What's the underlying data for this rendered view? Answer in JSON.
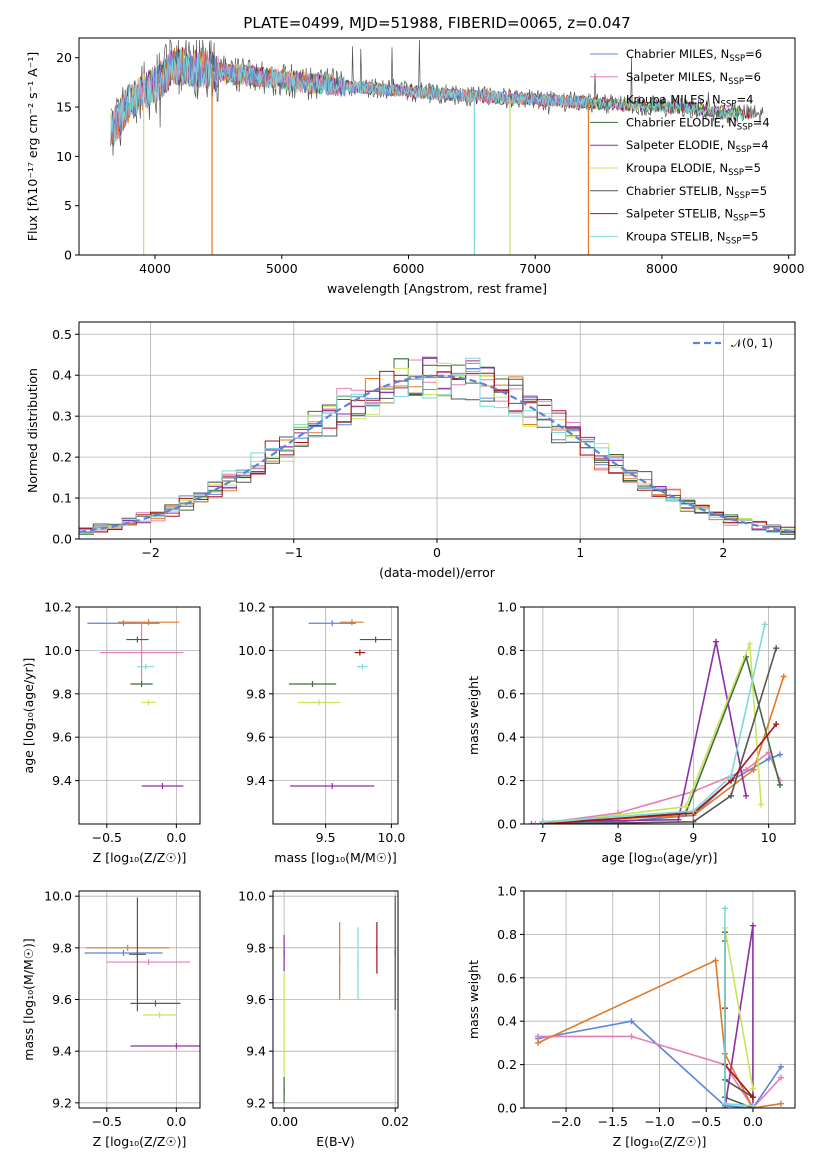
{
  "figure_title": "PLATE=0499, MJD=51988, FIBERID=0065, z=0.047",
  "colors": {
    "Chabrier MILES": "#5b86d8",
    "Salpeter MILES": "#e57fb8",
    "Kroupa MILES": "#e07a2a",
    "Chabrier ELODIE": "#3f6e3f",
    "Salpeter ELODIE": "#8f2ea8",
    "Kroupa ELODIE": "#c9e55a",
    "Chabrier STELIB": "#555555",
    "Salpeter STELIB": "#a81515",
    "Kroupa STELIB": "#7fd8d8"
  },
  "chart_data": [
    {
      "id": "spectrum",
      "type": "line",
      "xlabel": "wavelength [Angstrom, rest frame]",
      "ylabel": "Flux [fλ10⁻¹⁷ erg cm⁻² s⁻¹ A⁻¹]",
      "xlim": [
        3400,
        9050
      ],
      "ylim": [
        0,
        22
      ],
      "xticks": [
        4000,
        5000,
        6000,
        7000,
        8000,
        9000
      ],
      "yticks": [
        0,
        5,
        10,
        15,
        20
      ],
      "grid": false,
      "legend_position": "top-right",
      "legend": [
        {
          "label": "Chabrier MILES, N",
          "sub": "SSP",
          "eq": "=6"
        },
        {
          "label": "Salpeter MILES, N",
          "sub": "SSP",
          "eq": "=6"
        },
        {
          "label": "Kroupa MILES, N",
          "sub": "SSP",
          "eq": "=4"
        },
        {
          "label": "Chabrier ELODIE, N",
          "sub": "SSP",
          "eq": "=4"
        },
        {
          "label": "Salpeter ELODIE, N",
          "sub": "SSP",
          "eq": "=4"
        },
        {
          "label": "Kroupa ELODIE, N",
          "sub": "SSP",
          "eq": "=5"
        },
        {
          "label": "Chabrier STELIB, N",
          "sub": "SSP",
          "eq": "=5"
        },
        {
          "label": "Salpeter STELIB, N",
          "sub": "SSP",
          "eq": "=5"
        },
        {
          "label": "Kroupa STELIB, N",
          "sub": "SSP",
          "eq": "=5"
        }
      ],
      "continuum": {
        "x": [
          3650,
          3800,
          3950,
          4050,
          4150,
          4400,
          4700,
          5000,
          5300,
          5600,
          6000,
          6400,
          6800,
          7200,
          7500,
          7800,
          8200,
          8500,
          8800
        ],
        "y": [
          12.5,
          15.5,
          16.8,
          17.8,
          19.2,
          18.8,
          18.2,
          17.8,
          17.3,
          17.0,
          16.6,
          16.2,
          15.9,
          15.6,
          15.4,
          15.2,
          14.9,
          14.4,
          14.2
        ]
      },
      "dropouts": [
        {
          "series": "Kroupa ELODIE",
          "x": 3910
        },
        {
          "series": "Kroupa MILES",
          "x": 4450
        },
        {
          "series": "Kroupa STELIB",
          "x": 6520
        },
        {
          "series": "Kroupa ELODIE",
          "x": 6800
        },
        {
          "series": "Kroupa MILES",
          "x": 7420
        }
      ]
    },
    {
      "id": "residuals",
      "type": "line",
      "xlabel": "(data-model)/error",
      "ylabel": "Normed distribution",
      "xlim": [
        -2.5,
        2.5
      ],
      "ylim": [
        0,
        0.53
      ],
      "xticks": [
        -2,
        -1,
        0,
        1,
        2
      ],
      "yticks": [
        0.0,
        0.1,
        0.2,
        0.3,
        0.4,
        0.5
      ],
      "grid": true,
      "legend_position": "top-right",
      "reference_curve": {
        "label": "𝒩(0, 1)",
        "mean": 0,
        "sigma": 1
      }
    },
    {
      "id": "age_vs_Z",
      "type": "scatter",
      "xlabel": "Z [log₁₀(Z/Z☉)]",
      "ylabel": "age  [log₁₀(age/yr)]",
      "xlim": [
        -0.7,
        0.17
      ],
      "ylim": [
        9.2,
        10.2
      ],
      "xticks": [
        -0.5,
        0.0
      ],
      "yticks": [
        9.4,
        9.6,
        9.8,
        10.0,
        10.2
      ],
      "grid": true,
      "points": [
        {
          "series": "Chabrier MILES",
          "x": -0.38,
          "y": 10.125,
          "xerr": 0.26,
          "yerr": 0.0
        },
        {
          "series": "Kroupa MILES",
          "x": -0.2,
          "y": 10.13,
          "xerr": 0.22,
          "yerr": 0.0
        },
        {
          "series": "Salpeter MILES",
          "x": -0.25,
          "y": 9.99,
          "xerr": 0.3,
          "yerr": 0.14
        },
        {
          "series": "Chabrier STELIB",
          "x": -0.28,
          "y": 10.05,
          "xerr": 0.08,
          "yerr": 0.0
        },
        {
          "series": "Kroupa STELIB",
          "x": -0.22,
          "y": 9.925,
          "xerr": 0.06,
          "yerr": 0.0
        },
        {
          "series": "Chabrier ELODIE",
          "x": -0.25,
          "y": 9.845,
          "xerr": 0.08,
          "yerr": 0.0
        },
        {
          "series": "Kroupa ELODIE",
          "x": -0.2,
          "y": 9.76,
          "xerr": 0.05,
          "yerr": 0.0
        },
        {
          "series": "Salpeter ELODIE",
          "x": -0.1,
          "y": 9.375,
          "xerr": 0.15,
          "yerr": 0.0
        }
      ]
    },
    {
      "id": "age_vs_mass",
      "type": "scatter",
      "xlabel": "mass [log₁₀(M/M☉)]",
      "ylabel": "",
      "xlim": [
        9.1,
        10.05
      ],
      "ylim": [
        9.2,
        10.2
      ],
      "xticks": [
        9.5,
        10.0
      ],
      "yticks": [
        9.4,
        9.6,
        9.8,
        10.0,
        10.2
      ],
      "grid": true,
      "points": [
        {
          "series": "Chabrier MILES",
          "x": 9.55,
          "y": 10.125,
          "xerr": 0.18,
          "yerr": 0.0
        },
        {
          "series": "Kroupa MILES",
          "x": 9.7,
          "y": 10.13,
          "xerr": 0.09,
          "yerr": 0.0
        },
        {
          "series": "Chabrier STELIB",
          "x": 9.88,
          "y": 10.05,
          "xerr": 0.12,
          "yerr": 0.0
        },
        {
          "series": "Salpeter STELIB",
          "x": 9.76,
          "y": 9.99,
          "xerr": 0.04,
          "yerr": 0.0
        },
        {
          "series": "Kroupa STELIB",
          "x": 9.78,
          "y": 9.925,
          "xerr": 0.04,
          "yerr": 0.0
        },
        {
          "series": "Chabrier ELODIE",
          "x": 9.4,
          "y": 9.845,
          "xerr": 0.18,
          "yerr": 0.0
        },
        {
          "series": "Kroupa ELODIE",
          "x": 9.45,
          "y": 9.76,
          "xerr": 0.16,
          "yerr": 0.0
        },
        {
          "series": "Salpeter ELODIE",
          "x": 9.55,
          "y": 9.375,
          "xerr": 0.32,
          "yerr": 0.0
        }
      ]
    },
    {
      "id": "massweight_vs_age",
      "type": "line",
      "xlabel": "age  [log₁₀(age/yr)]",
      "ylabel": "mass weight",
      "xlim": [
        6.75,
        10.35
      ],
      "ylim": [
        0,
        1.0
      ],
      "xticks": [
        7,
        8,
        9,
        10
      ],
      "yticks": [
        0.0,
        0.2,
        0.4,
        0.6,
        0.8,
        1.0
      ],
      "grid": true,
      "series": [
        {
          "name": "Chabrier MILES",
          "x": [
            6.85,
            8.0,
            9.0,
            9.5,
            10.0,
            10.15
          ],
          "y": [
            0.0,
            0.01,
            0.04,
            0.2,
            0.3,
            0.32
          ]
        },
        {
          "name": "Salpeter MILES",
          "x": [
            6.9,
            8.0,
            9.0,
            9.7,
            10.0,
            10.15
          ],
          "y": [
            0.0,
            0.05,
            0.15,
            0.25,
            0.33,
            0.2
          ]
        },
        {
          "name": "Kroupa MILES",
          "x": [
            7.0,
            9.0,
            9.8,
            10.2
          ],
          "y": [
            0.01,
            0.04,
            0.25,
            0.68
          ]
        },
        {
          "name": "Chabrier ELODIE",
          "x": [
            7.0,
            8.9,
            9.7,
            10.15
          ],
          "y": [
            0.0,
            0.05,
            0.77,
            0.18
          ]
        },
        {
          "name": "Salpeter ELODIE",
          "x": [
            7.0,
            8.8,
            9.3,
            9.7
          ],
          "y": [
            0.01,
            0.02,
            0.84,
            0.13
          ]
        },
        {
          "name": "Kroupa ELODIE",
          "x": [
            7.0,
            8.9,
            9.75,
            9.9
          ],
          "y": [
            0.0,
            0.08,
            0.83,
            0.09
          ]
        },
        {
          "name": "Chabrier STELIB",
          "x": [
            7.0,
            9.0,
            9.5,
            10.1
          ],
          "y": [
            0.0,
            0.01,
            0.13,
            0.81
          ]
        },
        {
          "name": "Salpeter STELIB",
          "x": [
            7.0,
            9.0,
            9.5,
            10.1
          ],
          "y": [
            0.0,
            0.05,
            0.2,
            0.46
          ]
        },
        {
          "name": "Kroupa STELIB",
          "x": [
            7.0,
            9.0,
            9.5,
            9.95
          ],
          "y": [
            0.01,
            0.06,
            0.22,
            0.92
          ]
        }
      ]
    },
    {
      "id": "mass_vs_Z",
      "type": "scatter",
      "xlabel": "Z [log₁₀(Z/Z☉)]",
      "ylabel": "mass [log₁₀(M/M☉)]",
      "xlim": [
        -0.7,
        0.17
      ],
      "ylim": [
        9.18,
        10.02
      ],
      "xticks": [
        -0.5,
        0.0
      ],
      "yticks": [
        9.2,
        9.4,
        9.6,
        9.8,
        10.0
      ],
      "grid": true,
      "points": [
        {
          "series": "Kroupa MILES",
          "x": -0.35,
          "y": 9.8,
          "xerr": 0.3,
          "yerr": 0.0
        },
        {
          "series": "Chabrier MILES",
          "x": -0.38,
          "y": 9.78,
          "xerr": 0.28,
          "yerr": 0.0
        },
        {
          "series": "Salpeter MILES",
          "x": -0.2,
          "y": 9.745,
          "xerr": 0.3,
          "yerr": 0.0
        },
        {
          "series": "Chabrier STELIB",
          "x": -0.28,
          "y": 9.775,
          "xerr": 0.06,
          "yerr": 0.22
        },
        {
          "series": "Chabrier ELODIE",
          "x": -0.15,
          "y": 9.585,
          "xerr": 0.18,
          "yerr": 0.0
        },
        {
          "series": "Kroupa ELODIE",
          "x": -0.12,
          "y": 9.54,
          "xerr": 0.12,
          "yerr": 0.0
        },
        {
          "series": "Salpeter ELODIE",
          "x": 0.0,
          "y": 9.42,
          "xerr": 0.33,
          "yerr": 0.0
        }
      ]
    },
    {
      "id": "mass_vs_EBV",
      "type": "scatter",
      "xlabel": "E(B-V)",
      "ylabel": "",
      "xlim": [
        -0.002,
        0.0205
      ],
      "ylim": [
        9.18,
        10.02
      ],
      "xticks": [
        0.0,
        0.02
      ],
      "yticks": [
        9.2,
        9.4,
        9.6,
        9.8,
        10.0
      ],
      "grid": true,
      "points": [
        {
          "series": "Salpeter ELODIE",
          "x": 0.0,
          "y": 9.78,
          "xerr": 0.0,
          "yerr": 0.07
        },
        {
          "series": "Kroupa ELODIE",
          "x": 0.0,
          "y": 9.5,
          "xerr": 0.0,
          "yerr": 0.2
        },
        {
          "series": "Chabrier ELODIE",
          "x": 0.0,
          "y": 9.25,
          "xerr": 0.0,
          "yerr": 0.05
        },
        {
          "series": "Kroupa MILES",
          "x": 0.01,
          "y": 9.75,
          "xerr": 0.0,
          "yerr": 0.15
        },
        {
          "series": "Kroupa STELIB",
          "x": 0.0133,
          "y": 9.74,
          "xerr": 0.0,
          "yerr": 0.14
        },
        {
          "series": "Salpeter STELIB",
          "x": 0.0167,
          "y": 9.8,
          "xerr": 0.0,
          "yerr": 0.1
        },
        {
          "series": "Chabrier STELIB",
          "x": 0.02,
          "y": 9.78,
          "xerr": 0.0,
          "yerr": 0.22
        }
      ]
    },
    {
      "id": "massweight_vs_Z",
      "type": "line",
      "xlabel": "Z [log₁₀(Z/Z☉)]",
      "ylabel": "mass weight",
      "xlim": [
        -2.45,
        0.45
      ],
      "ylim": [
        0,
        1.0
      ],
      "xticks": [
        -2.0,
        -1.5,
        -1.0,
        -0.5,
        0.0
      ],
      "yticks": [
        0.0,
        0.2,
        0.4,
        0.6,
        0.8,
        1.0
      ],
      "grid": true,
      "series": [
        {
          "name": "Chabrier MILES",
          "x": [
            -2.3,
            -1.3,
            -0.3,
            0.0,
            0.3
          ],
          "y": [
            0.32,
            0.4,
            0.01,
            0.0,
            0.19
          ]
        },
        {
          "name": "Salpeter MILES",
          "x": [
            -2.3,
            -1.3,
            -0.3,
            0.0,
            0.3
          ],
          "y": [
            0.33,
            0.33,
            0.2,
            0.0,
            0.14
          ]
        },
        {
          "name": "Kroupa MILES",
          "x": [
            -2.3,
            -0.4,
            -0.3,
            0.0,
            0.3
          ],
          "y": [
            0.3,
            0.68,
            0.25,
            0.0,
            0.02
          ]
        },
        {
          "name": "Chabrier ELODIE",
          "x": [
            -0.3,
            -0.3,
            0.0
          ],
          "y": [
            0.77,
            0.05,
            0.0
          ]
        },
        {
          "name": "Salpeter ELODIE",
          "x": [
            -0.3,
            0.0,
            0.0
          ],
          "y": [
            0.0,
            0.84,
            0.0
          ]
        },
        {
          "name": "Kroupa ELODIE",
          "x": [
            -0.3,
            0.0
          ],
          "y": [
            0.83,
            0.09
          ]
        },
        {
          "name": "Chabrier STELIB",
          "x": [
            -0.3,
            -0.3,
            0.0
          ],
          "y": [
            0.81,
            0.13,
            0.05
          ]
        },
        {
          "name": "Salpeter STELIB",
          "x": [
            -0.3,
            -0.3,
            0.0
          ],
          "y": [
            0.46,
            0.2,
            0.05
          ]
        },
        {
          "name": "Kroupa STELIB",
          "x": [
            -0.3,
            -0.3,
            0.0
          ],
          "y": [
            0.92,
            0.02,
            0.01
          ]
        }
      ]
    }
  ]
}
